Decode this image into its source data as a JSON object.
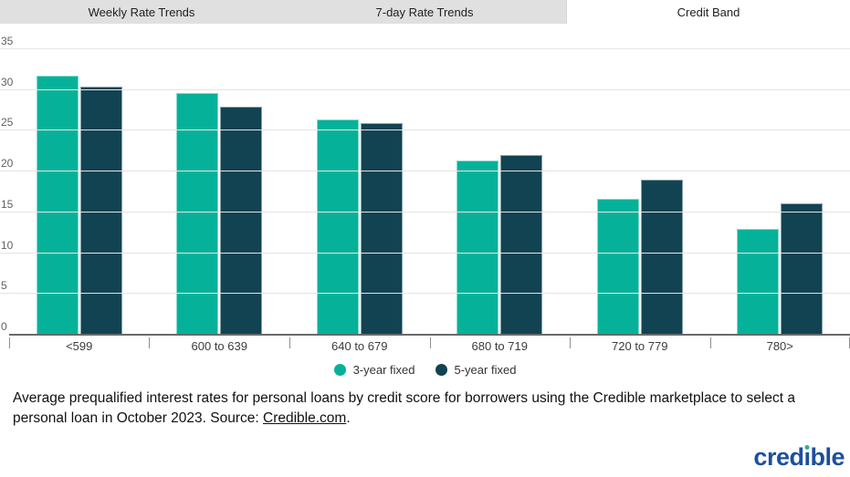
{
  "tabs": [
    {
      "label": "Weekly Rate Trends",
      "active": false
    },
    {
      "label": "7-day Rate Trends",
      "active": false
    },
    {
      "label": "Credit Band",
      "active": true
    }
  ],
  "chart_data": {
    "type": "bar",
    "categories": [
      "<599",
      "600 to 639",
      "640 to 679",
      "680 to 719",
      "720 to 779",
      "780>"
    ],
    "series": [
      {
        "name": "3-year fixed",
        "color": "#05b299",
        "values": [
          31.6,
          29.5,
          26.3,
          21.3,
          16.5,
          12.9
        ]
      },
      {
        "name": "5-year fixed",
        "color": "#114352",
        "values": [
          30.3,
          27.8,
          25.8,
          21.9,
          18.9,
          16.0
        ]
      }
    ],
    "title": "",
    "xlabel": "",
    "ylabel": "",
    "ylim": [
      0,
      35
    ],
    "ytick_step": 5,
    "grid": true,
    "legend_position": "bottom"
  },
  "caption": {
    "text": "Average prequalified interest rates for personal loans by credit score for borrowers using the Credible marketplace to select a personal loan in October 2023. Source: ",
    "link_text": "Credible.com",
    "suffix": "."
  },
  "logo": {
    "part1": "cred",
    "i_letter": "ı",
    "part2": "ble",
    "blue": "#1d4f9f",
    "green": "#2bb573"
  },
  "colors": {
    "bar_3yr": "#05b299",
    "bar_5yr": "#114352",
    "grid": "#e4e4e4",
    "axis": "#6a6a6a",
    "tab_bg": "#e0e0e0",
    "tab_active_bg": "#ffffff"
  }
}
